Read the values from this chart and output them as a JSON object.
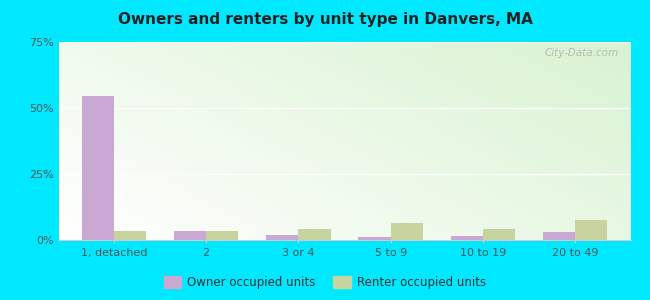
{
  "title": "Owners and renters by unit type in Danvers, MA",
  "categories": [
    "1, detached",
    "2",
    "3 or 4",
    "5 to 9",
    "10 to 19",
    "20 to 49"
  ],
  "owner_values": [
    54.5,
    3.5,
    2.0,
    1.0,
    1.5,
    3.0
  ],
  "renter_values": [
    3.5,
    3.5,
    4.0,
    6.5,
    4.0,
    7.5
  ],
  "owner_color": "#c9a8d4",
  "renter_color": "#c8d4a0",
  "ylim": [
    0,
    75
  ],
  "yticks": [
    0,
    25,
    50,
    75
  ],
  "ytick_labels": [
    "0%",
    "25%",
    "50%",
    "75%"
  ],
  "bar_width": 0.35,
  "outer_background": "#00e8ff",
  "legend_owner": "Owner occupied units",
  "legend_renter": "Renter occupied units",
  "watermark": "City-Data.com"
}
